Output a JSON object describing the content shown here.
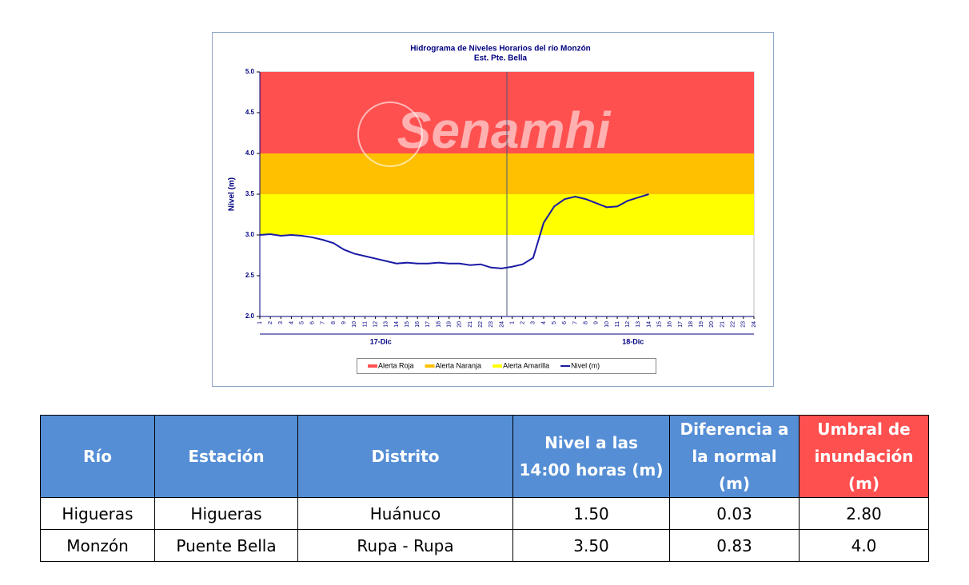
{
  "chart_data": {
    "type": "line",
    "title": "Hidrograma de Niveles Horarios del río Monzón",
    "subtitle": "Est. Pte. Bella",
    "y_label": "Nivel (m)",
    "watermark": "Senamhi",
    "categories": [
      "1",
      "2",
      "3",
      "4",
      "5",
      "6",
      "7",
      "8",
      "9",
      "10",
      "11",
      "12",
      "13",
      "14",
      "15",
      "16",
      "17",
      "18",
      "19",
      "20",
      "21",
      "22",
      "23",
      "24",
      "1",
      "2",
      "3",
      "4",
      "5",
      "6",
      "7",
      "8",
      "9",
      "10",
      "11",
      "12",
      "13",
      "14",
      "15",
      "16",
      "17",
      "18",
      "19",
      "20",
      "21",
      "22",
      "23",
      "24"
    ],
    "groups": [
      "17-Dic",
      "18-Dic"
    ],
    "ylim": [
      2,
      5
    ],
    "yticks": [
      {
        "value": 2,
        "label": "2.0"
      },
      2.5,
      {
        "value": 3,
        "label": "3.0"
      },
      3.5,
      {
        "value": 4,
        "label": "4.0"
      },
      4.5,
      {
        "value": 5,
        "label": "5.0"
      }
    ],
    "bands": [
      {
        "name": "Alerta Roja",
        "color": "#ff5050",
        "from": 4,
        "to": 5
      },
      {
        "name": "Alerta Naranja",
        "color": "#ffc000",
        "from": 3.5,
        "to": 4
      },
      {
        "name": "Alerta Amarilla",
        "color": "#ffff00",
        "from": 3,
        "to": 3.5
      }
    ],
    "series": [
      {
        "name": "Nivel (m)",
        "color": "#1a1aa6",
        "values": [
          3.0,
          3.01,
          2.99,
          3.0,
          2.99,
          2.97,
          2.94,
          2.9,
          2.82,
          2.77,
          2.74,
          2.71,
          2.68,
          2.65,
          2.66,
          2.65,
          2.65,
          2.66,
          2.65,
          2.65,
          2.63,
          2.64,
          2.6,
          2.59,
          2.61,
          2.64,
          2.72,
          3.15,
          3.35,
          3.44,
          3.47,
          3.44,
          3.39,
          3.34,
          3.35,
          3.42,
          3.46,
          3.5,
          null,
          null,
          null,
          null,
          null,
          null,
          null,
          null,
          null,
          null
        ]
      }
    ]
  },
  "table": {
    "header": [
      "Río",
      "Estación",
      "Distrito",
      "Nivel a las 14:00 horas (m)",
      "Diferencia a la normal (m)",
      "Umbral de inundación (m)"
    ],
    "rows": [
      [
        "Higueras",
        "Higueras",
        "Huánuco",
        "1.50",
        "0.03",
        "2.80"
      ],
      [
        "Monzón",
        "Puente Bella",
        "Rupa - Rupa",
        "3.50",
        "0.83",
        "4.0"
      ]
    ]
  }
}
